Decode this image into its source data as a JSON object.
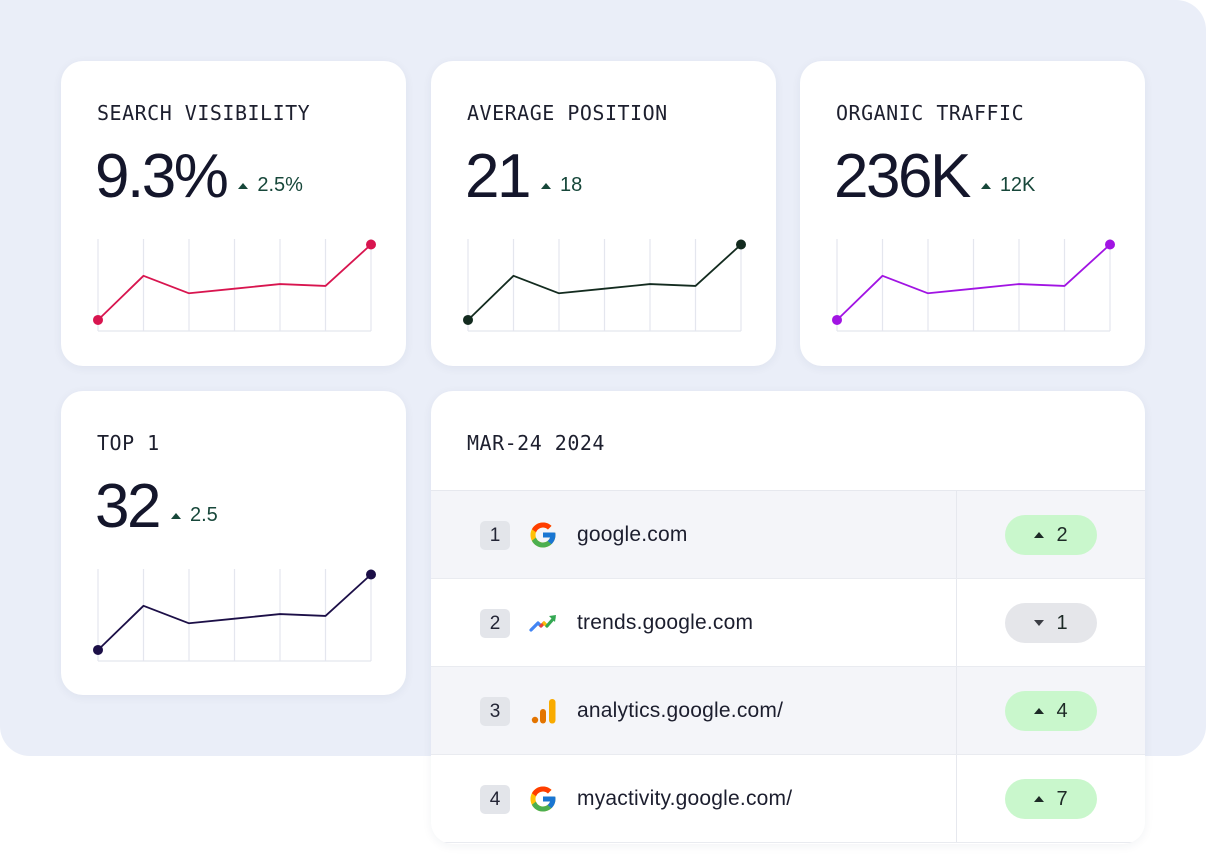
{
  "metrics": [
    {
      "title": "SEARCH VISIBILITY",
      "value": "9.3%",
      "delta": "2.5%",
      "color": "#d8154f",
      "trend": [
        0.12,
        0.6,
        0.41,
        0.46,
        0.51,
        0.49,
        0.94
      ]
    },
    {
      "title": "AVERAGE POSITION",
      "value": "21",
      "delta": "18",
      "color": "#132b1f",
      "trend": [
        0.12,
        0.6,
        0.41,
        0.46,
        0.51,
        0.49,
        0.94
      ]
    },
    {
      "title": "ORGANIC TRAFFIC",
      "value": "236K",
      "delta": "12K",
      "color": "#a114e3",
      "trend": [
        0.12,
        0.6,
        0.41,
        0.46,
        0.51,
        0.49,
        0.94
      ]
    },
    {
      "title": "TOP 1",
      "value": "32",
      "delta": "2.5",
      "color": "#1c0f47",
      "trend": [
        0.12,
        0.6,
        0.41,
        0.46,
        0.51,
        0.49,
        0.94
      ]
    }
  ],
  "table": {
    "title": "MAR-24 2024",
    "rows": [
      {
        "rank": "1",
        "icon": "google-g-icon",
        "domain": "google.com",
        "direction": "up",
        "change": "2"
      },
      {
        "rank": "2",
        "icon": "trends-icon",
        "domain": "trends.google.com",
        "direction": "down",
        "change": "1"
      },
      {
        "rank": "3",
        "icon": "analytics-icon",
        "domain": "analytics.google.com/",
        "direction": "up",
        "change": "4"
      },
      {
        "rank": "4",
        "icon": "google-g-icon",
        "domain": "myactivity.google.com/",
        "direction": "up",
        "change": "7"
      }
    ]
  },
  "colors": {
    "background": "#eaeef8",
    "up_badge": "#c9f7cc",
    "down_badge": "#e5e6ea",
    "delta_text": "#17473a"
  }
}
